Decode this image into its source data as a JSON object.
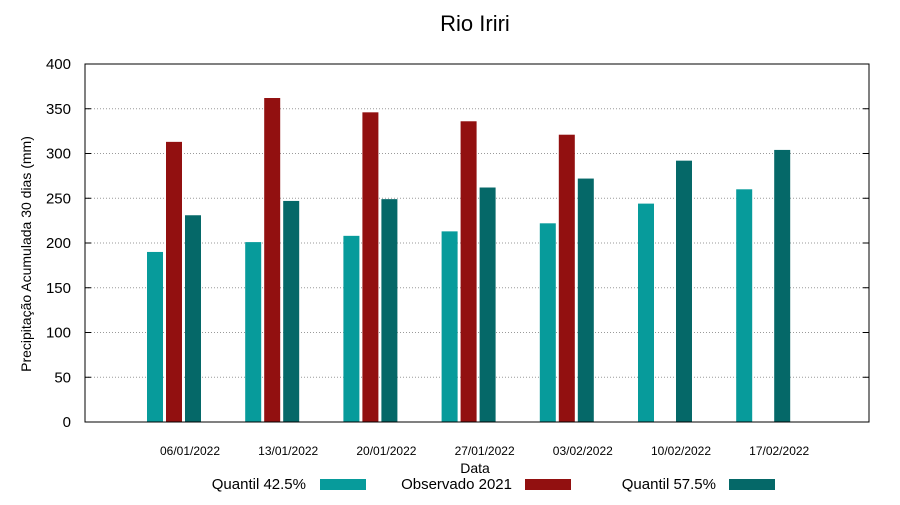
{
  "chart_data": {
    "type": "bar",
    "title": "Rio Iriri",
    "xlabel": "Data",
    "ylabel": "Precipitação Acumulada 30 dias (mm)",
    "ylim": [
      0,
      400
    ],
    "yticks": [
      0,
      50,
      100,
      150,
      200,
      250,
      300,
      350,
      400
    ],
    "grid": true,
    "legend_position": "bottom",
    "categories": [
      "06/01/2022",
      "13/01/2022",
      "20/01/2022",
      "27/01/2022",
      "03/02/2022",
      "10/02/2022",
      "17/02/2022"
    ],
    "series": [
      {
        "name": "Quantil 42.5%",
        "color": "#079b9b",
        "values": [
          190,
          201,
          208,
          213,
          222,
          244,
          260
        ]
      },
      {
        "name": "Observado 2021",
        "color": "#921010",
        "values": [
          313,
          362,
          346,
          336,
          321,
          null,
          null
        ]
      },
      {
        "name": "Quantil 57.5%",
        "color": "#056868",
        "values": [
          231,
          247,
          249,
          262,
          272,
          292,
          304
        ]
      }
    ]
  }
}
